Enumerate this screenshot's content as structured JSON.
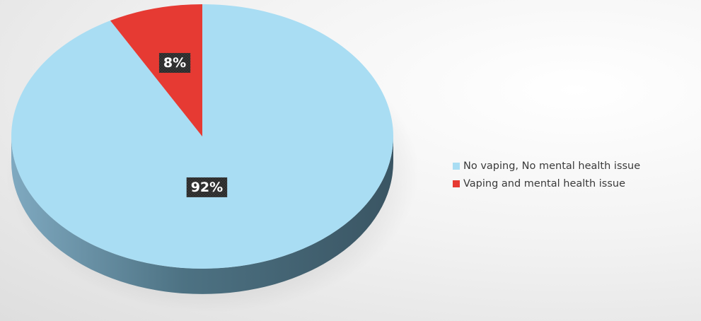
{
  "chart_data": {
    "type": "pie",
    "title": "",
    "legend_position": "right",
    "slices": [
      {
        "label": "No vaping, No mental health issue",
        "value": 92,
        "display": "92%",
        "color": "#a9ddf3"
      },
      {
        "label": "Vaping and mental health issue",
        "value": 8,
        "display": "8%",
        "color": "#e63a33"
      }
    ]
  }
}
